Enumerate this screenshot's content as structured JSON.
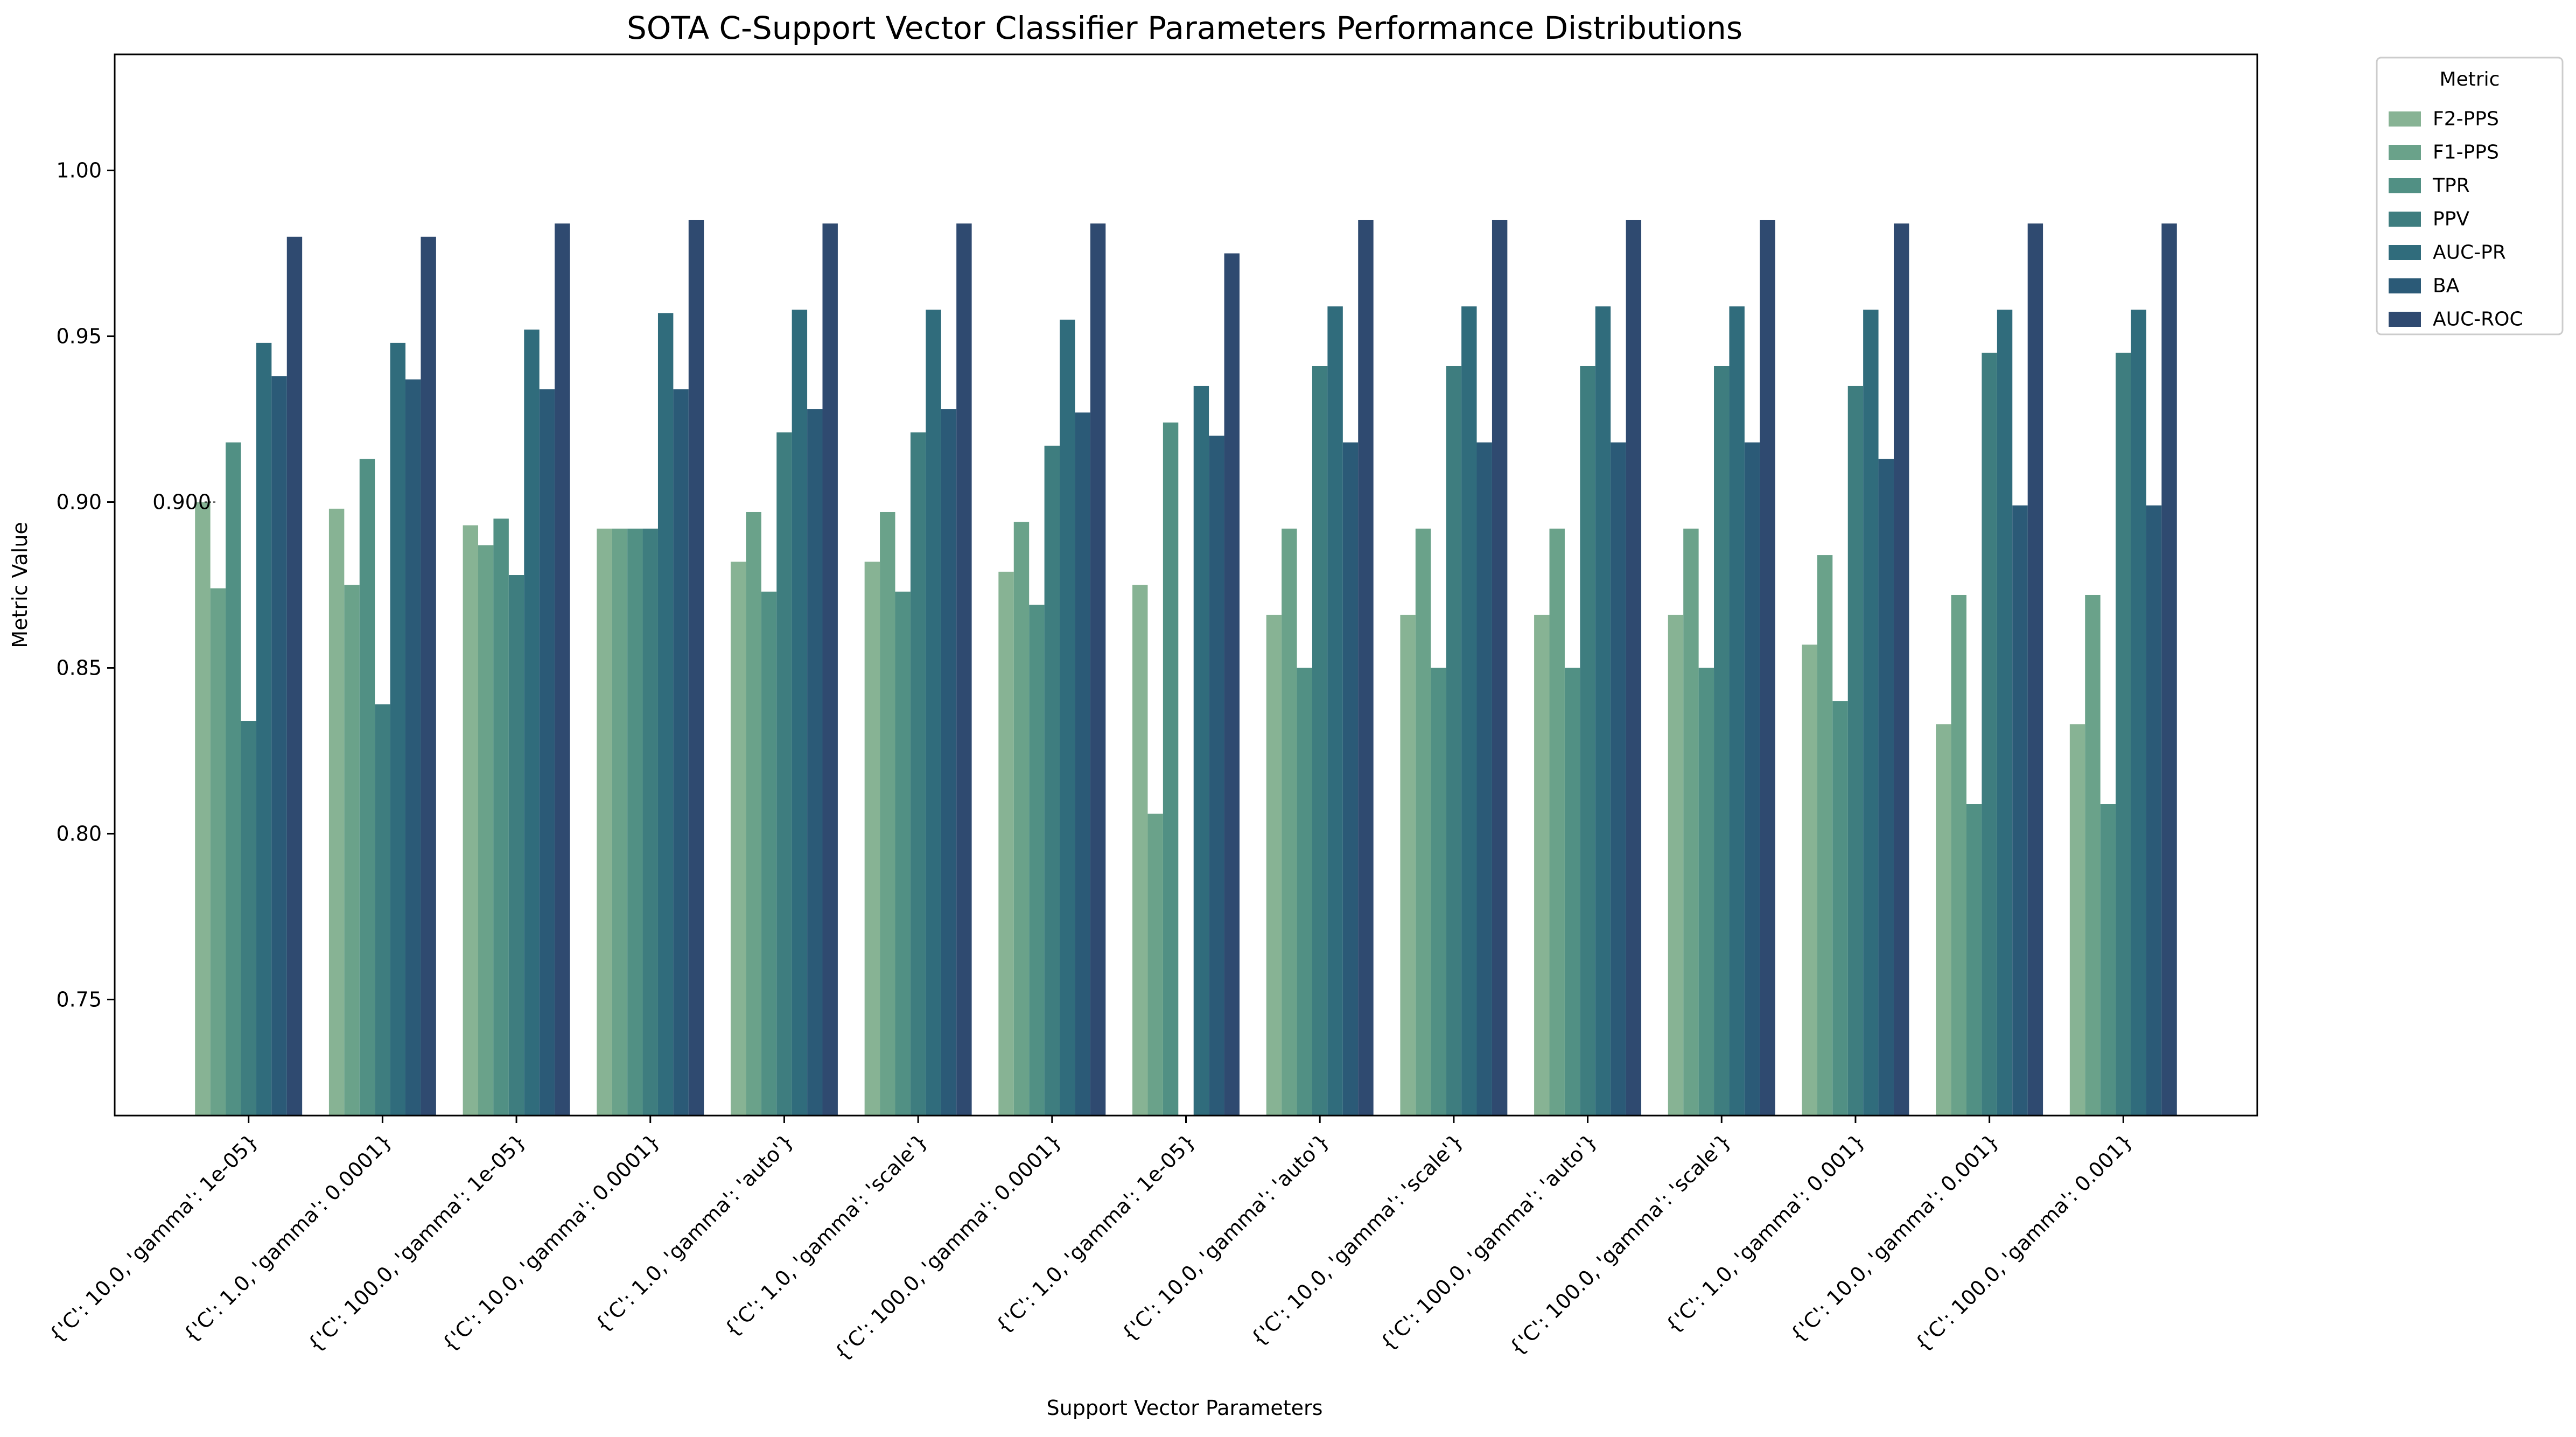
{
  "chart_data": {
    "type": "bar",
    "title": "SOTA C-Support Vector Classifier Parameters Performance Distributions",
    "xlabel": "Support Vector Parameters",
    "ylabel": "Metric Value",
    "ylim": [
      0.715,
      1.035
    ],
    "yticks": [
      "0.75",
      "0.80",
      "0.85",
      "0.90",
      "0.95",
      "1.00"
    ],
    "grid": false,
    "legend": {
      "title": "Metric",
      "placement": "outside-upper-right"
    },
    "annotation": {
      "text": "0.900",
      "value": 0.9,
      "category_index": 0,
      "series_index": 0
    },
    "categories": [
      "{'C': 10.0, 'gamma': 1e-05}",
      "{'C': 1.0, 'gamma': 0.0001}",
      "{'C': 100.0, 'gamma': 1e-05}",
      "{'C': 10.0, 'gamma': 0.0001}",
      "{'C': 1.0, 'gamma': 'auto'}",
      "{'C': 1.0, 'gamma': 'scale'}",
      "{'C': 100.0, 'gamma': 0.0001}",
      "{'C': 1.0, 'gamma': 1e-05}",
      "{'C': 10.0, 'gamma': 'auto'}",
      "{'C': 10.0, 'gamma': 'scale'}",
      "{'C': 100.0, 'gamma': 'auto'}",
      "{'C': 100.0, 'gamma': 'scale'}",
      "{'C': 1.0, 'gamma': 0.001}",
      "{'C': 10.0, 'gamma': 0.001}",
      "{'C': 100.0, 'gamma': 0.001}"
    ],
    "series": [
      {
        "name": "F2-PPS",
        "color": "#87b394",
        "values": [
          0.9,
          0.898,
          0.893,
          0.892,
          0.882,
          0.882,
          0.879,
          0.875,
          0.866,
          0.866,
          0.866,
          0.866,
          0.857,
          0.833,
          0.833
        ]
      },
      {
        "name": "F1-PPS",
        "color": "#6aa28a",
        "values": [
          0.874,
          0.875,
          0.887,
          0.892,
          0.897,
          0.897,
          0.894,
          0.806,
          0.892,
          0.892,
          0.892,
          0.892,
          0.884,
          0.872,
          0.872
        ]
      },
      {
        "name": "TPR",
        "color": "#519084",
        "values": [
          0.918,
          0.913,
          0.895,
          0.892,
          0.873,
          0.873,
          0.869,
          0.924,
          0.85,
          0.85,
          0.85,
          0.85,
          0.84,
          0.809,
          0.809
        ]
      },
      {
        "name": "PPV",
        "color": "#3e7d7f",
        "values": [
          0.834,
          0.839,
          0.878,
          0.892,
          0.921,
          0.921,
          0.917,
          0.715,
          0.941,
          0.941,
          0.941,
          0.941,
          0.935,
          0.945,
          0.945
        ]
      },
      {
        "name": "AUC-PR",
        "color": "#306c7c",
        "values": [
          0.948,
          0.948,
          0.952,
          0.957,
          0.958,
          0.958,
          0.955,
          0.935,
          0.959,
          0.959,
          0.959,
          0.959,
          0.958,
          0.958,
          0.958
        ]
      },
      {
        "name": "BA",
        "color": "#2b5a77",
        "values": [
          0.938,
          0.937,
          0.934,
          0.934,
          0.928,
          0.928,
          0.927,
          0.92,
          0.918,
          0.918,
          0.918,
          0.918,
          0.913,
          0.899,
          0.899
        ]
      },
      {
        "name": "AUC-ROC",
        "color": "#2f4a70",
        "values": [
          0.98,
          0.98,
          0.984,
          0.985,
          0.984,
          0.984,
          0.984,
          0.975,
          0.985,
          0.985,
          0.985,
          0.985,
          0.984,
          0.984,
          0.984
        ]
      }
    ]
  }
}
